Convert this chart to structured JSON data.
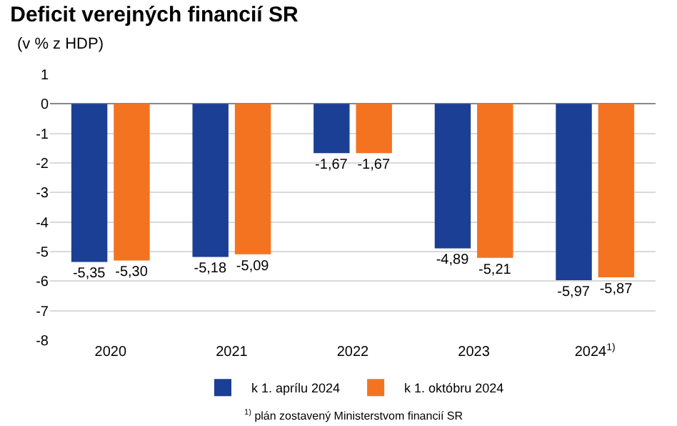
{
  "chart_data": {
    "type": "bar",
    "title": "Deficit verejných financií SR",
    "subtitle": "(v % z HDP)",
    "categories": [
      "2020",
      "2021",
      "2022",
      "2023",
      "2024$^{1)}$"
    ],
    "series": [
      {
        "name": "k 1. aprílu 2024",
        "color": "#1b3f94",
        "values": [
          -5.35,
          -5.18,
          -1.67,
          -4.89,
          -5.97
        ],
        "value_labels": [
          "-5,35",
          "-5,18",
          "-1,67",
          "-4,89",
          "-5,97"
        ]
      },
      {
        "name": "k 1. októbru 2024",
        "color": "#f47321",
        "values": [
          -5.3,
          -5.09,
          -1.67,
          -5.21,
          -5.87
        ],
        "value_labels": [
          "-5,30",
          "-5,09",
          "-1,67",
          "-5,21",
          "-5,87"
        ]
      }
    ],
    "ylim": [
      -8,
      1
    ],
    "yticks": [
      -8,
      -7,
      -6,
      -5,
      -4,
      -3,
      -2,
      -1,
      0,
      1
    ],
    "grid": "y",
    "legend": "bottom",
    "annotations": [
      "$^{1)}$ plán zostavený Ministerstvom financií SR"
    ]
  }
}
